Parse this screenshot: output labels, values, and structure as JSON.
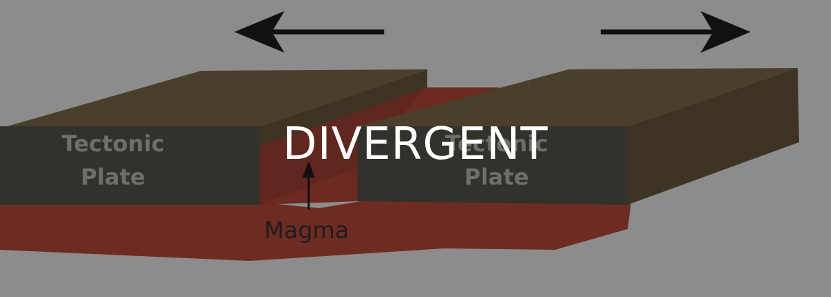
{
  "title": "DIVERGENT",
  "labels": {
    "left_plate_line1": "Tectonic",
    "left_plate_line2": "Plate",
    "right_plate_line1": "Tectonic",
    "right_plate_line2": "Plate",
    "magma": "Magma"
  },
  "colors": {
    "background": "#8c8c8c",
    "plate_front": "#32312c",
    "plate_top": "#4a3f2a",
    "plate_side": "#3d3424",
    "magma": "#6e2b22",
    "magma_dark": "#5a241d",
    "arrow": "#111111",
    "title": "#ffffff"
  },
  "icons": {
    "left_arrow": "arrow-left-icon",
    "right_arrow": "arrow-right-icon"
  }
}
